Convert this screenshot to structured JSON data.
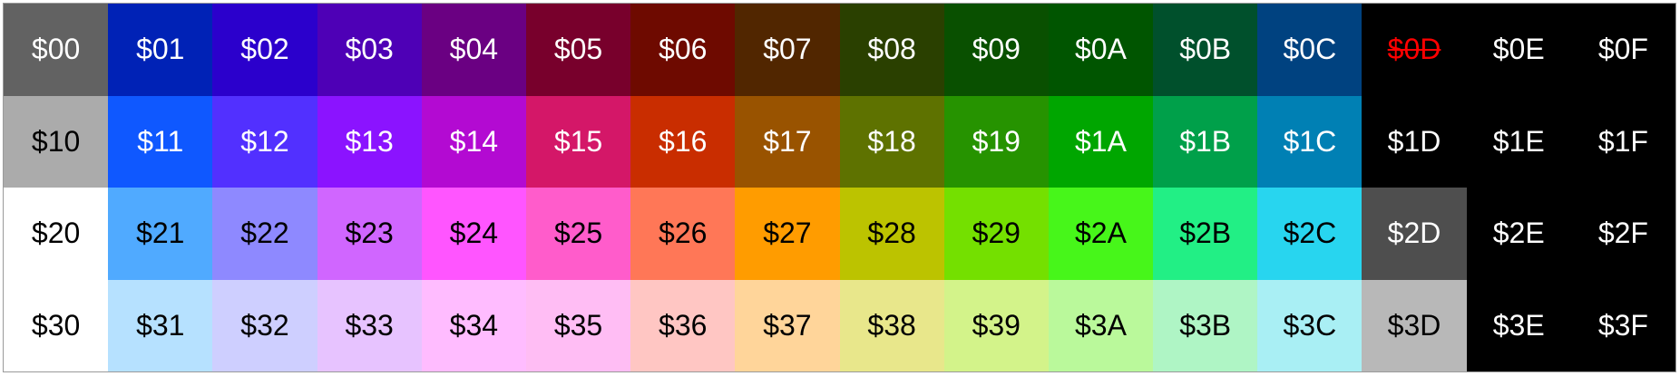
{
  "palette": {
    "cells": [
      {
        "label": "$00",
        "bg": "#626262",
        "fg": "#ffffff"
      },
      {
        "label": "$01",
        "bg": "#0022b6",
        "fg": "#ffffff"
      },
      {
        "label": "$02",
        "bg": "#2b00cc",
        "fg": "#ffffff"
      },
      {
        "label": "$03",
        "bg": "#4e00b6",
        "fg": "#ffffff"
      },
      {
        "label": "$04",
        "bg": "#6a0082",
        "fg": "#ffffff"
      },
      {
        "label": "$05",
        "bg": "#78002c",
        "fg": "#ffffff"
      },
      {
        "label": "$06",
        "bg": "#6e0a00",
        "fg": "#ffffff"
      },
      {
        "label": "$07",
        "bg": "#512600",
        "fg": "#ffffff"
      },
      {
        "label": "$08",
        "bg": "#2a4000",
        "fg": "#ffffff"
      },
      {
        "label": "$09",
        "bg": "#095000",
        "fg": "#ffffff"
      },
      {
        "label": "$0A",
        "bg": "#005500",
        "fg": "#ffffff"
      },
      {
        "label": "$0B",
        "bg": "#00502c",
        "fg": "#ffffff"
      },
      {
        "label": "$0C",
        "bg": "#004280",
        "fg": "#ffffff"
      },
      {
        "label": "$0D",
        "bg": "#000000",
        "fg": "#ff0000",
        "struck": true
      },
      {
        "label": "$0E",
        "bg": "#000000",
        "fg": "#ffffff"
      },
      {
        "label": "$0F",
        "bg": "#000000",
        "fg": "#ffffff"
      },
      {
        "label": "$10",
        "bg": "#ababab",
        "fg": "#000000"
      },
      {
        "label": "$11",
        "bg": "#0f58ff",
        "fg": "#ffffff"
      },
      {
        "label": "$12",
        "bg": "#5230ff",
        "fg": "#ffffff"
      },
      {
        "label": "$13",
        "bg": "#8b13ff",
        "fg": "#ffffff"
      },
      {
        "label": "$14",
        "bg": "#b30ad2",
        "fg": "#ffffff"
      },
      {
        "label": "$15",
        "bg": "#d41768",
        "fg": "#ffffff"
      },
      {
        "label": "$16",
        "bg": "#c92d00",
        "fg": "#ffffff"
      },
      {
        "label": "$17",
        "bg": "#995300",
        "fg": "#ffffff"
      },
      {
        "label": "$18",
        "bg": "#5e7200",
        "fg": "#ffffff"
      },
      {
        "label": "$19",
        "bg": "#269300",
        "fg": "#ffffff"
      },
      {
        "label": "$1A",
        "bg": "#00a600",
        "fg": "#ffffff"
      },
      {
        "label": "$1B",
        "bg": "#00a04a",
        "fg": "#ffffff"
      },
      {
        "label": "$1C",
        "bg": "#0080b4",
        "fg": "#ffffff"
      },
      {
        "label": "$1D",
        "bg": "#000000",
        "fg": "#ffffff"
      },
      {
        "label": "$1E",
        "bg": "#000000",
        "fg": "#ffffff"
      },
      {
        "label": "$1F",
        "bg": "#000000",
        "fg": "#ffffff"
      },
      {
        "label": "$20",
        "bg": "#ffffff",
        "fg": "#000000"
      },
      {
        "label": "$21",
        "bg": "#50aaff",
        "fg": "#000000"
      },
      {
        "label": "$22",
        "bg": "#8e89ff",
        "fg": "#000000"
      },
      {
        "label": "$23",
        "bg": "#d066ff",
        "fg": "#000000"
      },
      {
        "label": "$24",
        "bg": "#ff55ff",
        "fg": "#000000"
      },
      {
        "label": "$25",
        "bg": "#ff5ccb",
        "fg": "#000000"
      },
      {
        "label": "$26",
        "bg": "#ff7757",
        "fg": "#000000"
      },
      {
        "label": "$27",
        "bg": "#ff9c00",
        "fg": "#000000"
      },
      {
        "label": "$28",
        "bg": "#bcc300",
        "fg": "#000000"
      },
      {
        "label": "$29",
        "bg": "#74e000",
        "fg": "#000000"
      },
      {
        "label": "$2A",
        "bg": "#47f61a",
        "fg": "#000000"
      },
      {
        "label": "$2B",
        "bg": "#22ef85",
        "fg": "#000000"
      },
      {
        "label": "$2C",
        "bg": "#28d5ef",
        "fg": "#000000"
      },
      {
        "label": "$2D",
        "bg": "#4e4e4e",
        "fg": "#ffffff"
      },
      {
        "label": "$2E",
        "bg": "#000000",
        "fg": "#ffffff"
      },
      {
        "label": "$2F",
        "bg": "#000000",
        "fg": "#ffffff"
      },
      {
        "label": "$30",
        "bg": "#ffffff",
        "fg": "#000000"
      },
      {
        "label": "$31",
        "bg": "#b6e1ff",
        "fg": "#000000"
      },
      {
        "label": "$32",
        "bg": "#cecfff",
        "fg": "#000000"
      },
      {
        "label": "$33",
        "bg": "#e7c3ff",
        "fg": "#000000"
      },
      {
        "label": "$34",
        "bg": "#ffbcff",
        "fg": "#000000"
      },
      {
        "label": "$35",
        "bg": "#ffbdf4",
        "fg": "#000000"
      },
      {
        "label": "$36",
        "bg": "#ffc6c3",
        "fg": "#000000"
      },
      {
        "label": "$37",
        "bg": "#ffd59a",
        "fg": "#000000"
      },
      {
        "label": "$38",
        "bg": "#e8e78b",
        "fg": "#000000"
      },
      {
        "label": "$39",
        "bg": "#d3f38a",
        "fg": "#000000"
      },
      {
        "label": "$3A",
        "bg": "#baf99b",
        "fg": "#000000"
      },
      {
        "label": "$3B",
        "bg": "#aff5c5",
        "fg": "#000000"
      },
      {
        "label": "$3C",
        "bg": "#a9eff4",
        "fg": "#000000"
      },
      {
        "label": "$3D",
        "bg": "#b8b8b8",
        "fg": "#000000"
      },
      {
        "label": "$3E",
        "bg": "#000000",
        "fg": "#ffffff"
      },
      {
        "label": "$3F",
        "bg": "#000000",
        "fg": "#ffffff"
      }
    ]
  }
}
